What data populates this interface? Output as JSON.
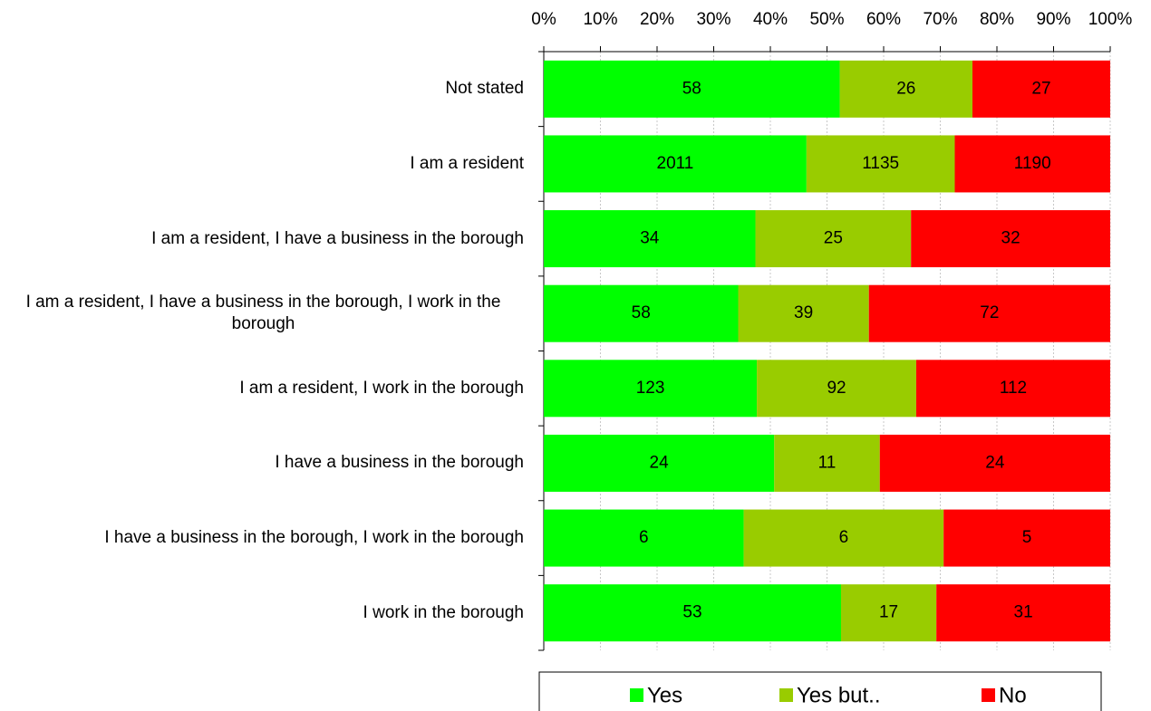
{
  "chart_data": {
    "type": "bar",
    "orientation": "horizontal",
    "stacking": "percent",
    "categories": [
      "Not stated",
      "I am a resident",
      "I am a resident, I have a business in the borough",
      "I am a resident, I have a business in the borough, I work in the borough",
      "I am a resident, I work in the borough",
      "I have a business in the borough",
      "I have a business in the borough, I work in the borough",
      "I work in the borough"
    ],
    "series": [
      {
        "name": "Yes",
        "color": "#00ff00",
        "values": [
          58,
          2011,
          34,
          58,
          123,
          24,
          6,
          53
        ]
      },
      {
        "name": "Yes but..",
        "color": "#99cc00",
        "values": [
          26,
          1135,
          25,
          39,
          92,
          11,
          6,
          17
        ]
      },
      {
        "name": "No",
        "color": "#ff0000",
        "values": [
          27,
          1190,
          32,
          72,
          112,
          24,
          5,
          31
        ]
      }
    ],
    "xlim": [
      0,
      100
    ],
    "xticks": [
      {
        "value": 0,
        "label": "0%"
      },
      {
        "value": 10,
        "label": "10%"
      },
      {
        "value": 20,
        "label": "20%"
      },
      {
        "value": 30,
        "label": "30%"
      },
      {
        "value": 40,
        "label": "40%"
      },
      {
        "value": 50,
        "label": "50%"
      },
      {
        "value": 60,
        "label": "60%"
      },
      {
        "value": 70,
        "label": "70%"
      },
      {
        "value": 80,
        "label": "80%"
      },
      {
        "value": 90,
        "label": "90%"
      },
      {
        "value": 100,
        "label": "100%"
      }
    ],
    "grid": true,
    "legend": "bottom"
  }
}
